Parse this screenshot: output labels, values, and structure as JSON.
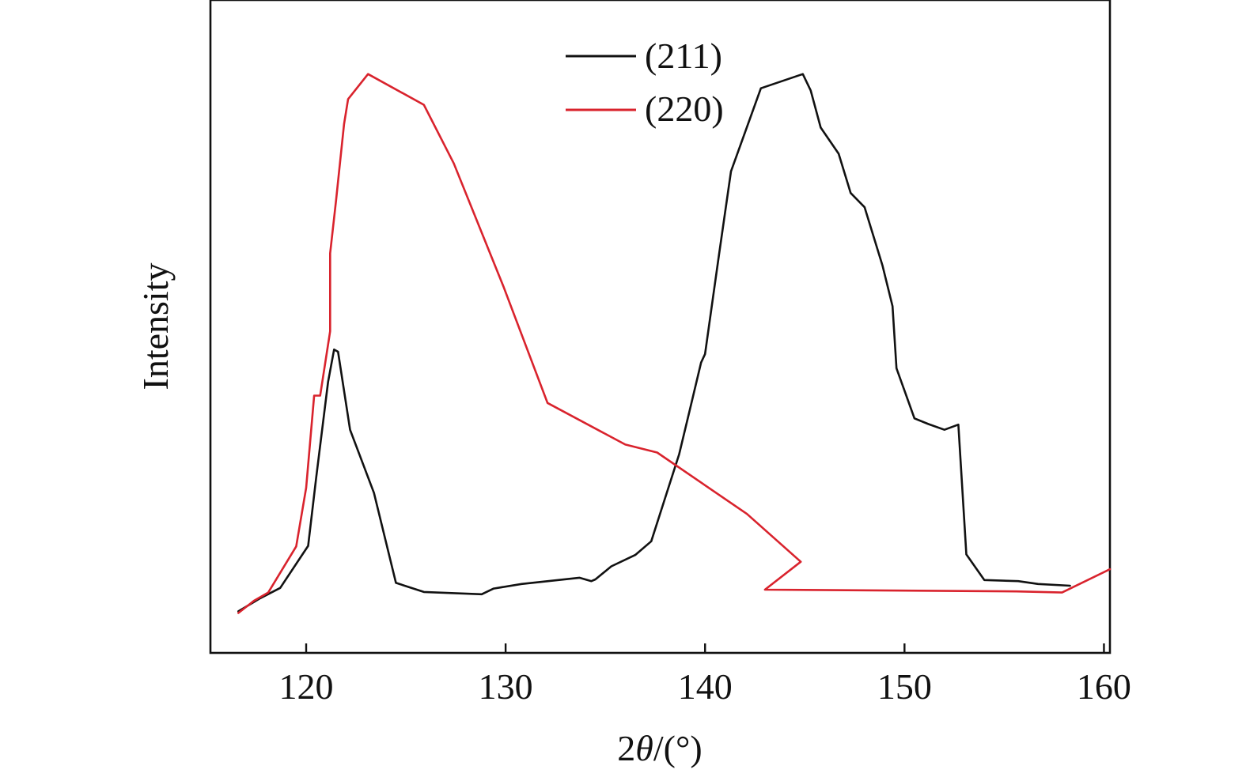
{
  "chart_data": {
    "type": "line",
    "xlabel": "2θ/(°)",
    "ylabel": "Intensity",
    "xlim": [
      115.2,
      160.3
    ],
    "ylim": [
      0,
      100
    ],
    "xticks": [
      120,
      130,
      140,
      150,
      160
    ],
    "grid": false,
    "legend_position": "top-center",
    "series": [
      {
        "name": "(211)",
        "color": "#111111",
        "x": [
          116.6,
          117.7,
          118.7,
          120.1,
          120.5,
          121.1,
          121.4,
          121.6,
          122.2,
          123.4,
          124.5,
          125.9,
          128.8,
          129.4,
          130.8,
          133.7,
          134.3,
          134.5,
          135.3,
          136.5,
          137.3,
          138.7,
          139.2,
          139.8,
          140.0,
          140.7,
          141.3,
          142.8,
          144.9,
          145.3,
          145.8,
          146.7,
          147.3,
          148.0,
          148.9,
          149.4,
          149.6,
          150.5,
          151.2,
          152.0,
          152.7,
          153.1,
          154.0,
          155.7,
          156.7,
          158.3
        ],
        "y": [
          3.7,
          6.0,
          7.8,
          15.2,
          27.1,
          44.0,
          49.7,
          49.3,
          35.6,
          24.5,
          8.7,
          7.1,
          6.7,
          7.7,
          8.5,
          9.6,
          9.0,
          9.3,
          11.6,
          13.6,
          16.0,
          31.3,
          38.6,
          47.4,
          48.9,
          66.4,
          81.0,
          95.6,
          98.1,
          95.2,
          88.7,
          84.1,
          77.2,
          74.7,
          64.4,
          57.3,
          46.4,
          37.6,
          36.6,
          35.6,
          36.5,
          13.7,
          9.2,
          9.0,
          8.5,
          8.2
        ],
        "note": ""
      },
      {
        "name": "(220)",
        "color": "#d9232d",
        "x": [
          116.6,
          117.4,
          118.1,
          119.5,
          120.0,
          120.4,
          120.7,
          121.2,
          121.2,
          121.5,
          121.9,
          122.1,
          123.1,
          125.9,
          127.4,
          129.9,
          132.1,
          136.0,
          137.6,
          142.1,
          144.8,
          143.0,
          155.6,
          157.9,
          160.3
        ],
        "y": [
          3.4,
          5.6,
          7.0,
          15.1,
          25.4,
          41.6,
          41.6,
          52.9,
          66.6,
          75.9,
          89.3,
          93.7,
          98.1,
          92.7,
          82.4,
          60.7,
          40.3,
          33.0,
          31.6,
          20.8,
          12.4,
          7.5,
          7.2,
          7.0,
          11.1
        ],
        "note": ""
      }
    ]
  }
}
